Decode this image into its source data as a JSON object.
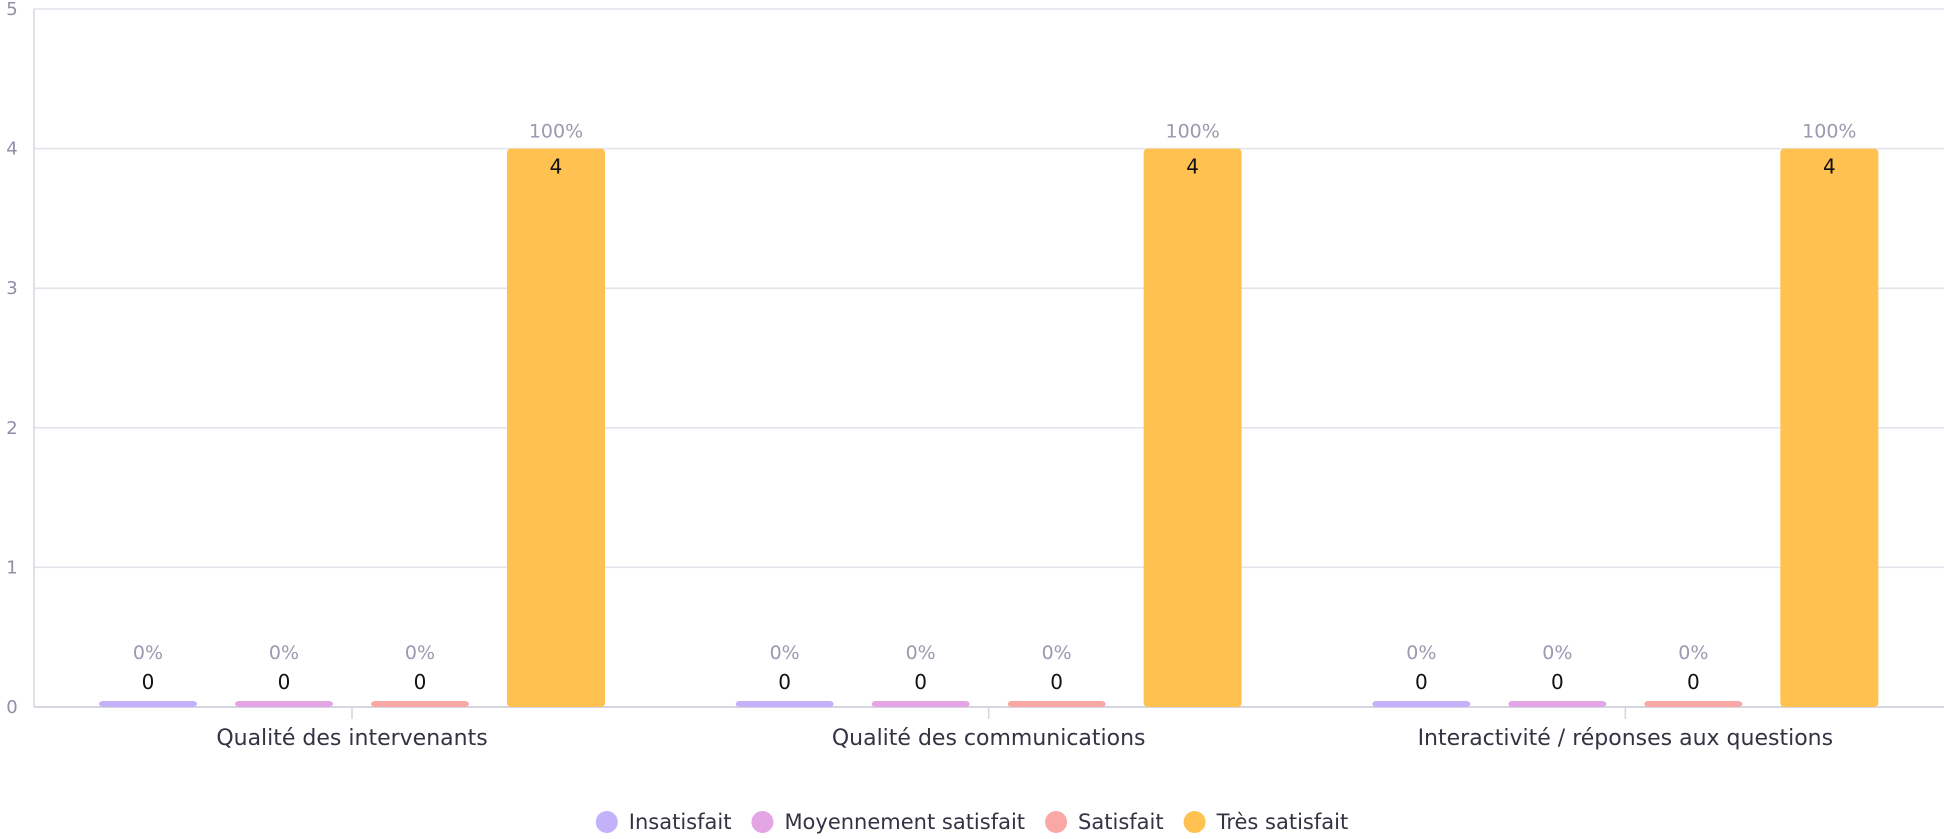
{
  "chart_data": {
    "type": "bar",
    "categories": [
      "Qualité des intervenants",
      "Qualité des communications",
      "Interactivité / réponses aux questions"
    ],
    "series": [
      {
        "name": "Insatisfait",
        "values": [
          0,
          0,
          0
        ],
        "percents": [
          "0%",
          "0%",
          "0%"
        ],
        "color": "#c3b1fa"
      },
      {
        "name": "Moyennement satisfait",
        "values": [
          0,
          0,
          0
        ],
        "percents": [
          "0%",
          "0%",
          "0%"
        ],
        "color": "#e4a5e4"
      },
      {
        "name": "Satisfait",
        "values": [
          0,
          0,
          0
        ],
        "percents": [
          "0%",
          "0%",
          "0%"
        ],
        "color": "#f9a8a5"
      },
      {
        "name": "Très satisfait",
        "values": [
          4,
          4,
          4
        ],
        "percents": [
          "100%",
          "100%",
          "100%"
        ],
        "color": "#ffc14f"
      }
    ],
    "ylim": [
      0,
      5
    ],
    "yticks": [
      0,
      1,
      2,
      3,
      4,
      5
    ],
    "grid": true,
    "legend_position": "bottom-center"
  }
}
